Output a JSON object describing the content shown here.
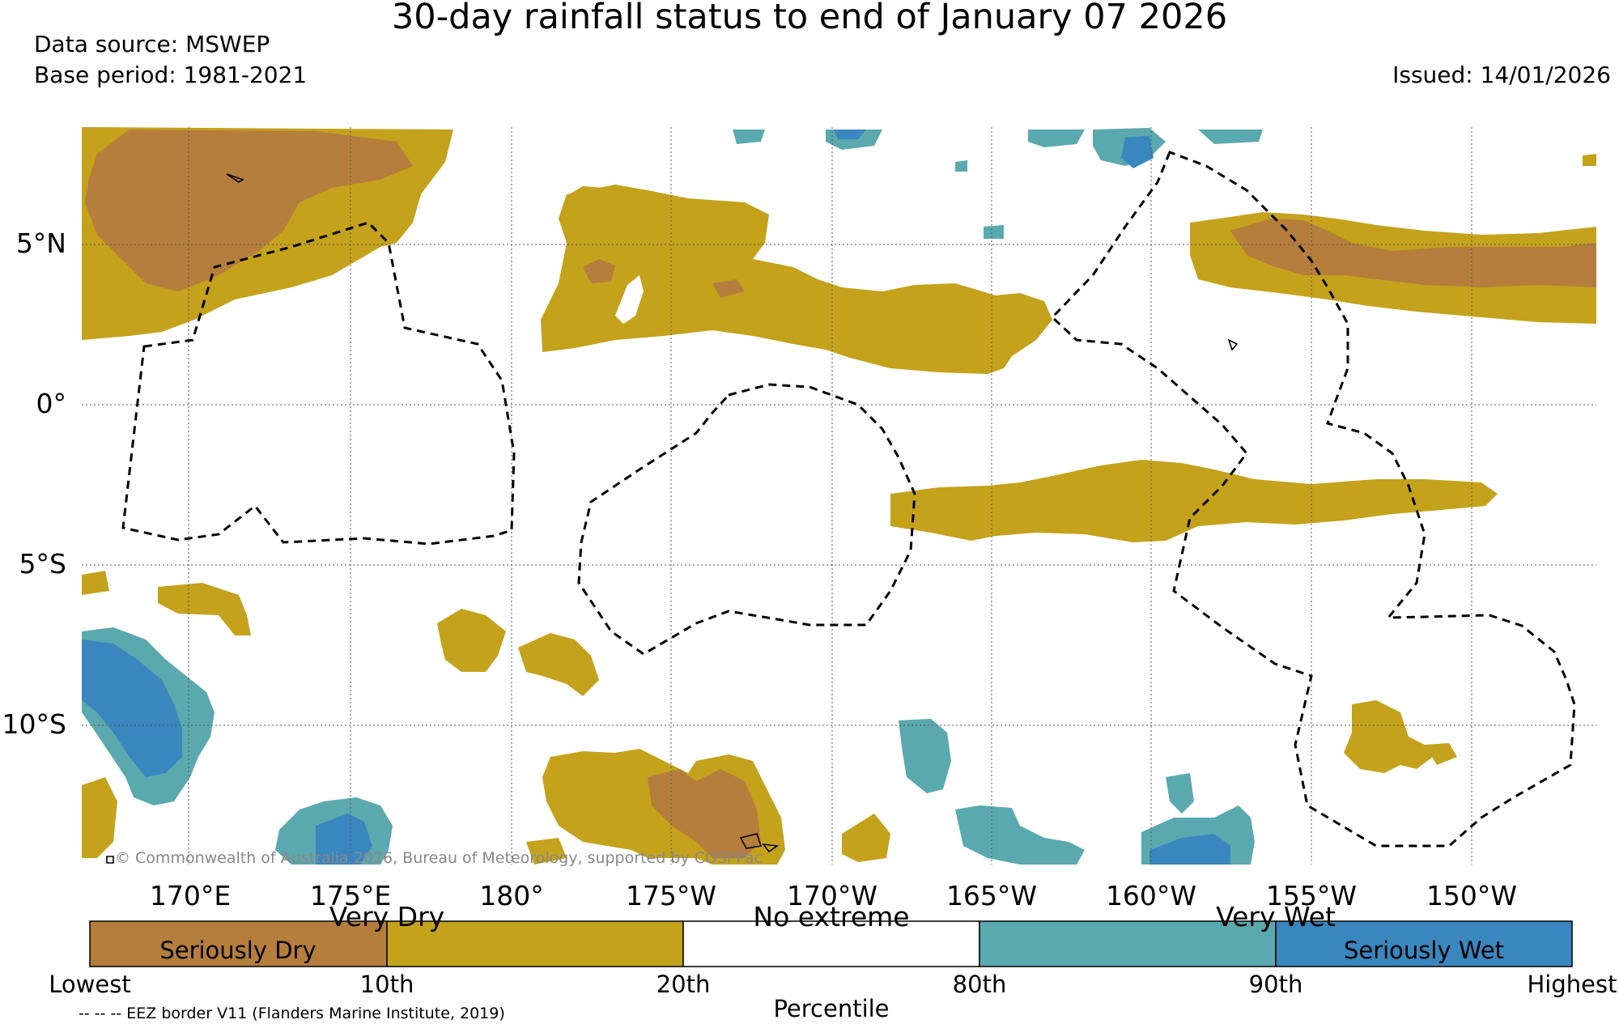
{
  "header": {
    "title": "30-day rainfall status to end of January 07 2026",
    "data_source": "Data source: MSWEP",
    "base_period": "Base period: 1981-2021",
    "issued": "Issued: 14/01/2026"
  },
  "map": {
    "lat_labels": [
      "5°N",
      "0°",
      "5°S",
      "10°S"
    ],
    "lon_labels": [
      "170°E",
      "175°E",
      "180°",
      "175°W",
      "170°W",
      "165°W",
      "160°W",
      "155°W",
      "150°W"
    ],
    "copyright": "© Commonwealth of Australia 2026, Bureau of Meteorology, supported by COSPPac",
    "eez_line_color": "#000000"
  },
  "colorbar": {
    "categories_top": [
      "Very Dry",
      "No extreme",
      "Very Wet"
    ],
    "inner_labels": [
      "Seriously Dry",
      "Seriously Wet"
    ],
    "tick_labels": [
      "Lowest",
      "10th",
      "20th",
      "80th",
      "90th",
      "Highest"
    ],
    "axis_label": "Percentile",
    "colors": [
      "#b57e3c",
      "#c4a21c",
      "#ffffff",
      "#5aa9ae",
      "#3a86bf"
    ]
  },
  "footer": {
    "eez_note": "-- -- -- EEZ border V11 (Flanders Marine Institute, 2019)"
  }
}
